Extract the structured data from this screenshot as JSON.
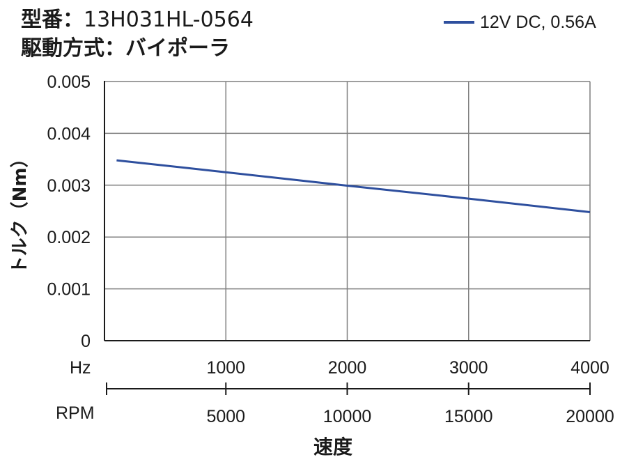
{
  "header": {
    "model_label": "型番：",
    "model_value": "13H031HL-0564",
    "drive_label": "駆動方式：",
    "drive_value": "バイポーラ"
  },
  "chart_data": {
    "type": "line",
    "title": "",
    "ylabel": "トルク（Nm）",
    "xlabel": "速度",
    "x_unit_label": "Hz",
    "x2_unit_label": "RPM",
    "xlim": [
      0,
      4000
    ],
    "ylim": [
      0,
      0.005
    ],
    "x_ticks": [
      1000,
      2000,
      3000,
      4000
    ],
    "x_tick_labels": [
      "1000",
      "2000",
      "3000",
      "4000"
    ],
    "x2_ticks": [
      1000,
      2000,
      3000,
      4000
    ],
    "x2_tick_labels": [
      "5000",
      "10000",
      "15000",
      "20000"
    ],
    "y_ticks": [
      0,
      0.001,
      0.002,
      0.003,
      0.004,
      0.005
    ],
    "y_tick_labels": [
      "0",
      "0.001",
      "0.002",
      "0.003",
      "0.004",
      "0.005"
    ],
    "grid": true,
    "legend_position": "top-right",
    "series": [
      {
        "name": "12V DC, 0.56A",
        "color": "#2e4f9e",
        "x": [
          100,
          1000,
          2000,
          3000,
          4000
        ],
        "y": [
          0.00348,
          0.00325,
          0.00299,
          0.00274,
          0.00248
        ]
      }
    ]
  }
}
